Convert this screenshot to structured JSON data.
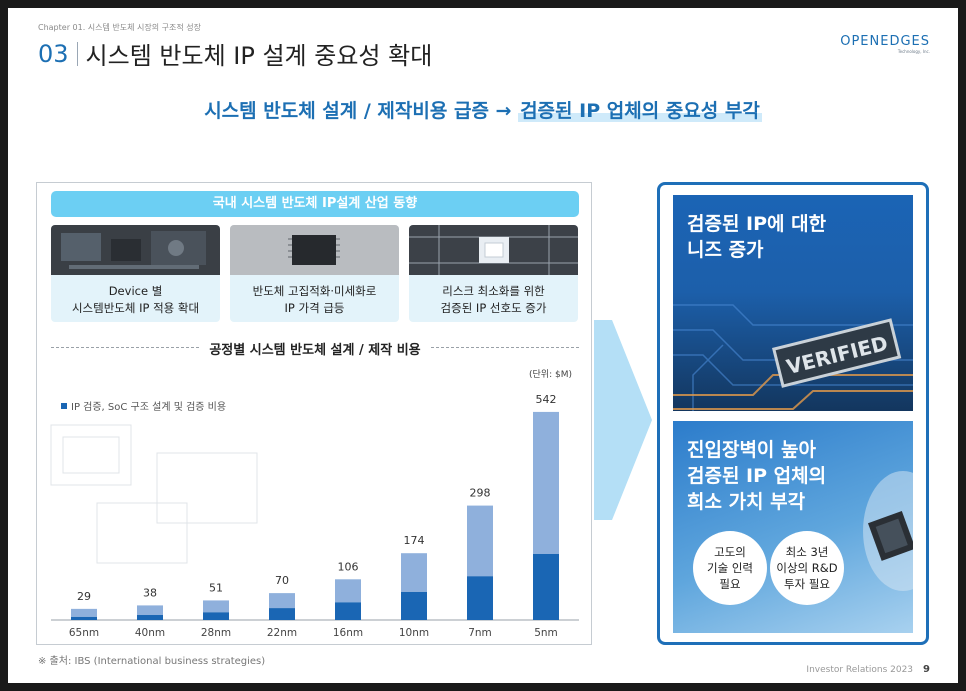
{
  "header": {
    "chapter": "Chapter 01. 시스템 반도체 시장의 구조적 성장",
    "number": "03",
    "title": "시스템 반도체 IP 설계 중요성 확대",
    "logo": "OPENEDGES",
    "logo_sub": "Technology, Inc."
  },
  "headline": {
    "part1": "시스템 반도체 설계 / 제작비용 급증",
    "arrow": " → ",
    "part2": "검증된 IP 업체의 중요성 부각"
  },
  "left_panel": {
    "trend_title": "국내 시스템 반도체 IP설계 산업 동향",
    "cards": [
      {
        "line1": "Device 별",
        "line2": "시스템반도체 IP 적용 확대"
      },
      {
        "line1": "반도체 고집적화·미세화로",
        "line2": "IP 가격 급등"
      },
      {
        "line1": "리스크 최소화를 위한",
        "line2": "검증된 IP 선호도 증가"
      }
    ],
    "chart_title": "공정별 시스템 반도체 설계 / 제작 비용",
    "unit": "(단위: $M)",
    "legend": "IP 검증, SoC 구조 설계 및 검증 비용"
  },
  "chart_data": {
    "type": "bar",
    "categories": [
      "65nm",
      "40nm",
      "28nm",
      "22nm",
      "16nm",
      "10nm",
      "7nm",
      "5nm"
    ],
    "series": [
      {
        "name": "IP 검증, SoC 구조 설계 및 검증 비용",
        "values": [
          8,
          13,
          20,
          31,
          46,
          73,
          114,
          172
        ]
      },
      {
        "values": [
          21,
          25,
          31,
          39,
          60,
          101,
          184,
          370
        ]
      }
    ],
    "totals": [
      29,
      38,
      51,
      70,
      106,
      174,
      298,
      542
    ],
    "colors": {
      "dark": "#1a66b4",
      "light": "#8fb0dc"
    },
    "ylim": [
      0,
      560
    ]
  },
  "right_panel": {
    "top_title_line1": "검증된 IP에 대한",
    "top_title_line2": "니즈 증가",
    "stamp": "VERIFIED",
    "bottom_title_line1": "진입장벽이 높아",
    "bottom_title_line2": "검증된 IP 업체의",
    "bottom_title_line3": "희소 가치 부각",
    "badge1_line1": "고도의",
    "badge1_line2": "기술 인력",
    "badge1_line3": "필요",
    "badge2_line1": "최소 3년",
    "badge2_line2": "이상의 R&D",
    "badge2_line3": "투자 필요"
  },
  "footer": {
    "source": "※ 출처: IBS (International business strategies)",
    "label": "Investor Relations 2023",
    "page": "9"
  }
}
